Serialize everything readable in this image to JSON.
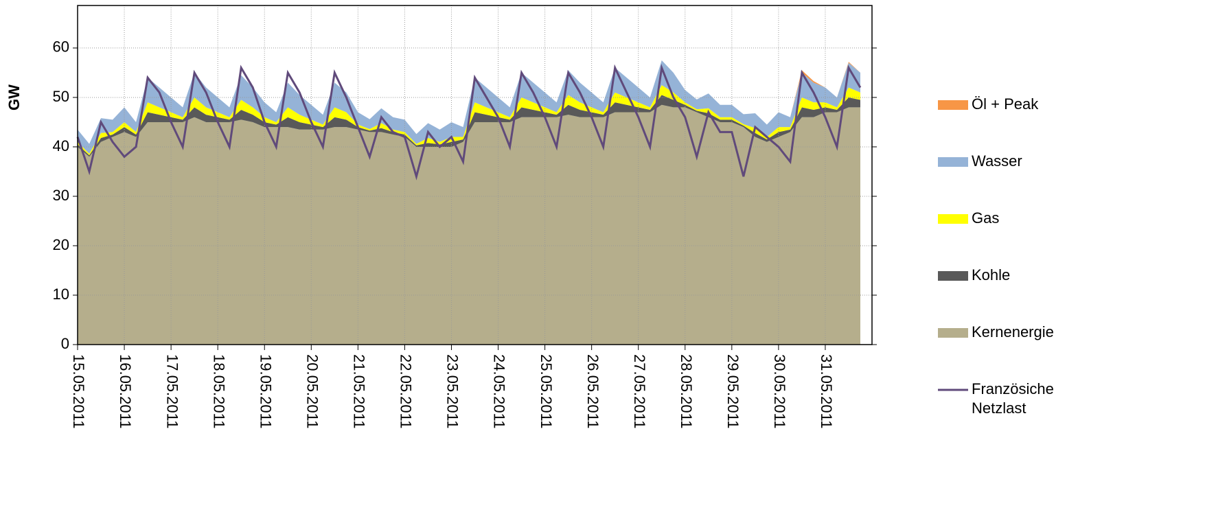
{
  "chart_data": {
    "type": "area",
    "stacked": true,
    "ylabel": "GW",
    "xlim": [
      0,
      17
    ],
    "ylim": [
      0,
      68.6
    ],
    "yticks": [
      0,
      10,
      20,
      30,
      40,
      50,
      60
    ],
    "xticks": [
      {
        "value": 0,
        "label": "15.05.2011"
      },
      {
        "value": 1,
        "label": "16.05.2011"
      },
      {
        "value": 2,
        "label": "17.05.2011"
      },
      {
        "value": 3,
        "label": "18.05.2011"
      },
      {
        "value": 4,
        "label": "19.05.2011"
      },
      {
        "value": 5,
        "label": "20.05.2011"
      },
      {
        "value": 6,
        "label": "21.05.2011"
      },
      {
        "value": 7,
        "label": "22.05.2011"
      },
      {
        "value": 8,
        "label": "23.05.2011"
      },
      {
        "value": 9,
        "label": "24.05.2011"
      },
      {
        "value": 10,
        "label": "25.05.2011"
      },
      {
        "value": 11,
        "label": "26.05.2011"
      },
      {
        "value": 12,
        "label": "27.05.2011"
      },
      {
        "value": 13,
        "label": "28.05.2011"
      },
      {
        "value": 14,
        "label": "29.05.2011"
      },
      {
        "value": 15,
        "label": "30.05.2011"
      },
      {
        "value": 16,
        "label": "31.05.2011"
      }
    ],
    "grid": true,
    "x": [
      0,
      0.25,
      0.5,
      0.75,
      1,
      1.25,
      1.5,
      1.75,
      2,
      2.25,
      2.5,
      2.75,
      3,
      3.25,
      3.5,
      3.75,
      4,
      4.25,
      4.5,
      4.75,
      5,
      5.25,
      5.5,
      5.75,
      6,
      6.25,
      6.5,
      6.75,
      7,
      7.25,
      7.5,
      7.75,
      8,
      8.25,
      8.5,
      8.75,
      9,
      9.25,
      9.5,
      9.75,
      10,
      10.25,
      10.5,
      10.75,
      11,
      11.25,
      11.5,
      11.75,
      12,
      12.25,
      12.5,
      12.75,
      13,
      13.25,
      13.5,
      13.75,
      14,
      14.25,
      14.5,
      14.75,
      15,
      15.25,
      15.5,
      15.75,
      16,
      16.25,
      16.5,
      16.75
    ],
    "series": [
      {
        "name": "Kernenergie",
        "color": "#b5ae8c",
        "values": [
          40,
          38,
          41,
          42,
          43,
          42,
          45,
          45,
          45,
          45,
          46,
          45,
          45,
          45,
          45.5,
          45,
          44,
          44,
          44,
          43.5,
          43.5,
          43.5,
          44,
          44,
          43.5,
          43,
          43,
          42.5,
          42,
          40,
          40,
          40,
          40,
          41,
          45,
          45,
          45,
          45,
          46,
          46,
          46,
          46,
          46.5,
          46,
          46,
          46,
          47,
          47,
          47,
          47,
          48.5,
          48,
          48,
          47,
          46,
          45,
          45,
          44,
          42,
          41,
          42,
          43,
          46,
          46,
          47,
          47,
          48,
          48
        ]
      },
      {
        "name": "Kohle",
        "color": "#595959",
        "values": [
          0.5,
          0.3,
          0.8,
          0.5,
          1,
          0.5,
          2,
          1.5,
          1,
          0.5,
          2,
          1.5,
          1,
          0.5,
          2,
          1.5,
          1,
          0.5,
          2,
          1.5,
          1,
          0.5,
          2,
          1.5,
          0.5,
          0.3,
          0.8,
          0.5,
          0.5,
          0.3,
          0.8,
          0.5,
          1,
          0.5,
          2,
          1.5,
          1,
          0.5,
          2,
          1.5,
          1,
          0.5,
          2,
          1.5,
          1,
          0.5,
          2,
          1.5,
          1,
          0.5,
          2,
          1.5,
          0.5,
          0.3,
          0.8,
          0.5,
          0.5,
          0.3,
          0.8,
          0.5,
          1,
          0.5,
          2,
          1.5,
          1,
          0.5,
          2,
          1.5
        ]
      },
      {
        "name": "Gas",
        "color": "#ffff00",
        "values": [
          0.5,
          0.3,
          1,
          0.5,
          1,
          0.5,
          2,
          1.5,
          1,
          0.5,
          2,
          1.5,
          1,
          0.5,
          2,
          1.5,
          1,
          0.5,
          2,
          1.5,
          1,
          0.5,
          2,
          1.5,
          0.5,
          0.3,
          1,
          0.5,
          0.5,
          0.3,
          1,
          0.5,
          1,
          0.5,
          2,
          1.5,
          1,
          0.5,
          2,
          1.5,
          1,
          0.5,
          2,
          1.5,
          1,
          0.5,
          2,
          1.5,
          1,
          0.5,
          2,
          1.5,
          0.5,
          0.3,
          1,
          0.5,
          0.5,
          0.3,
          1,
          0.5,
          1,
          0.5,
          2,
          1.5,
          1,
          0.5,
          2,
          1.5
        ]
      },
      {
        "name": "Wasser",
        "color": "#95b3d7",
        "values": [
          2.5,
          2,
          3,
          2.5,
          3,
          2,
          5,
          4,
          3,
          2,
          5,
          4,
          3,
          2,
          5,
          4,
          3,
          2,
          5,
          4,
          3,
          2,
          5,
          4,
          2.5,
          2,
          3,
          2.5,
          2.5,
          2,
          3,
          2.5,
          3,
          2,
          5,
          4,
          3,
          2,
          5,
          4,
          3,
          2,
          5,
          4,
          3,
          2,
          5,
          4,
          3,
          2,
          5,
          4,
          2.5,
          2,
          3,
          2.5,
          2.5,
          2,
          3,
          2.5,
          3,
          2,
          5,
          4,
          3,
          2,
          5,
          4
        ]
      },
      {
        "name": "Öl + Peak",
        "color": "#f79646",
        "values": [
          0,
          0,
          0,
          0,
          0,
          0,
          0,
          0,
          0,
          0,
          0,
          0,
          0,
          0,
          0,
          0,
          0,
          0,
          0,
          0,
          0,
          0,
          0,
          0,
          0,
          0,
          0,
          0,
          0,
          0,
          0,
          0,
          0,
          0,
          0,
          0,
          0,
          0,
          0,
          0,
          0,
          0,
          0,
          0,
          0,
          0,
          0,
          0,
          0,
          0,
          0,
          0,
          0,
          0,
          0,
          0,
          0,
          0,
          0,
          0,
          0,
          0,
          0.5,
          0.3,
          0,
          0,
          0.2,
          0
        ]
      },
      {
        "name": "Französiche Netzlast",
        "type": "line",
        "color": "#604a7b",
        "values": [
          42,
          35,
          45,
          41,
          38,
          40,
          54,
          51,
          45,
          40,
          55,
          51,
          45,
          40,
          56,
          52,
          45,
          40,
          55,
          51,
          45,
          40,
          55,
          50,
          44,
          38,
          46,
          43,
          42,
          34,
          43,
          40,
          42,
          37,
          54,
          50,
          46,
          40,
          55,
          51,
          46,
          40,
          55,
          51,
          46,
          40,
          56,
          51,
          46,
          40,
          56,
          50,
          46,
          38,
          47,
          43,
          43,
          34,
          44,
          42,
          40,
          37,
          55,
          51,
          46,
          40,
          56,
          52
        ]
      }
    ]
  }
}
